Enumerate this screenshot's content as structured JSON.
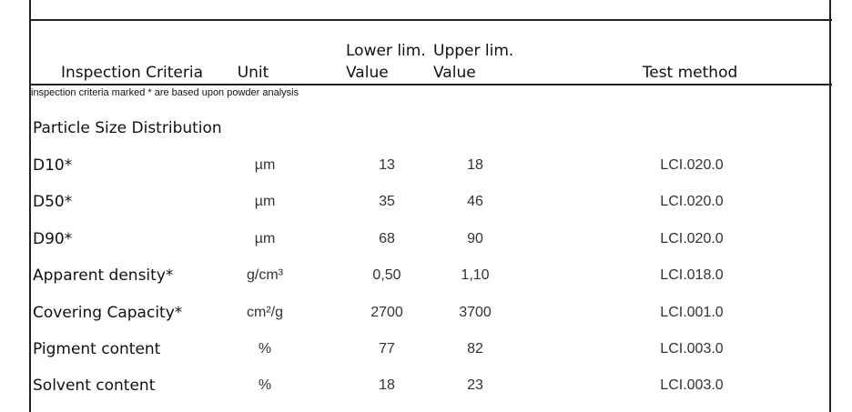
{
  "header": {
    "criteria": "Inspection Criteria",
    "unit": "Unit",
    "lower": [
      "Lower lim.",
      "Value"
    ],
    "upper": [
      "Upper lim.",
      "Value"
    ],
    "method": "Test method"
  },
  "note": "inspection criteria marked * are based upon powder analysis",
  "section": "Particle Size Distribution",
  "rows": [
    [
      "D10*",
      "µm",
      "13",
      "18",
      "LCI.020.0"
    ],
    [
      "D50*",
      "µm",
      "35",
      "46",
      "LCI.020.0"
    ],
    [
      "D90*",
      "µm",
      "68",
      "90",
      "LCI.020.0"
    ],
    [
      "Apparent density*",
      "g/cm³",
      "0,50",
      "1,10",
      "LCI.018.0"
    ],
    [
      "Covering Capacity*",
      "cm²/g",
      "2700",
      "3700",
      "LCI.001.0"
    ],
    [
      "Pigment content",
      "%",
      "77",
      "82",
      "LCI.003.0"
    ],
    [
      "Solvent content",
      "%",
      "18",
      "23",
      "LCI.003.0"
    ]
  ]
}
